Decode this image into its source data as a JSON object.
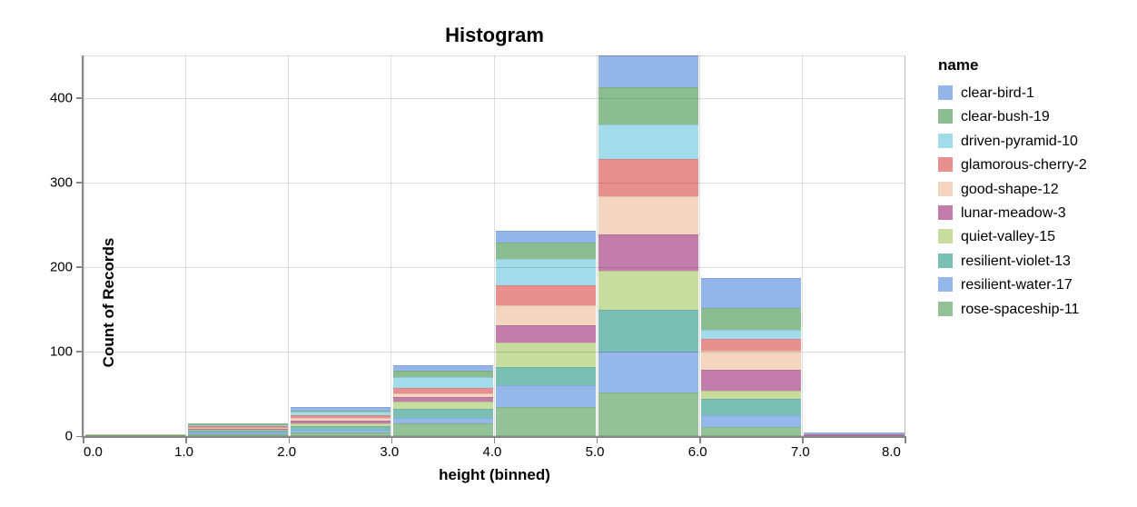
{
  "title": "Histogram",
  "axes": {
    "x_title": "height (binned)",
    "y_title": "Count of Records"
  },
  "legend": {
    "title": "name"
  },
  "colors": {
    "grid": "rgba(0,0,0,0.13)",
    "axis_domain": "#888888",
    "text": "#000000",
    "background": "#ffffff"
  },
  "chart_data": {
    "type": "bar",
    "stacked": true,
    "stack_order": "reversed",
    "title": "Histogram",
    "xlabel": "height (binned)",
    "ylabel": "Count of Records",
    "legend_title": "name",
    "legend_position": "right",
    "grid": true,
    "xlim": [
      0,
      8
    ],
    "ylim": [
      0,
      450
    ],
    "x_tick_values": [
      0,
      1,
      2,
      3,
      4,
      5,
      6,
      7,
      8
    ],
    "x_tick_labels": [
      "0.0",
      "1.0",
      "2.0",
      "3.0",
      "4.0",
      "5.0",
      "6.0",
      "7.0",
      "8.0"
    ],
    "y_tick_values": [
      0,
      100,
      200,
      300,
      400
    ],
    "y_tick_labels": [
      "0",
      "100",
      "200",
      "300",
      "400"
    ],
    "bin_edges": [
      0,
      1,
      2,
      3,
      4,
      5,
      6,
      7,
      8
    ],
    "bin_totals": [
      2,
      15,
      34,
      84,
      243,
      450,
      187,
      4
    ],
    "series": [
      {
        "name": "clear-bird-1",
        "color": "#93b5e9",
        "values": [
          0,
          0,
          4,
          7,
          14,
          38,
          36,
          2
        ]
      },
      {
        "name": "clear-bush-19",
        "color": "#8cbd90",
        "values": [
          0,
          2,
          1,
          7,
          20,
          44,
          25,
          0
        ]
      },
      {
        "name": "driven-pyramid-10",
        "color": "#a2dcea",
        "values": [
          0,
          1,
          4,
          13,
          31,
          40,
          11,
          0
        ]
      },
      {
        "name": "glamorous-cherry-2",
        "color": "#e89090",
        "values": [
          0,
          2,
          3,
          6,
          23,
          44,
          14,
          0
        ]
      },
      {
        "name": "good-shape-12",
        "color": "#f4d5c0",
        "values": [
          0,
          1,
          4,
          5,
          24,
          46,
          23,
          0
        ]
      },
      {
        "name": "lunar-meadow-3",
        "color": "#c27daa",
        "values": [
          0,
          1,
          3,
          5,
          20,
          43,
          24,
          2
        ]
      },
      {
        "name": "quiet-valley-15",
        "color": "#c7dd9d",
        "values": [
          1,
          2,
          3,
          9,
          29,
          46,
          10,
          0
        ]
      },
      {
        "name": "resilient-violet-13",
        "color": "#79bfb4",
        "values": [
          0,
          2,
          4,
          10,
          22,
          49,
          19,
          0
        ]
      },
      {
        "name": "resilient-water-17",
        "color": "#95b8ea",
        "values": [
          0,
          2,
          4,
          7,
          26,
          48,
          14,
          0
        ]
      },
      {
        "name": "rose-spaceship-11",
        "color": "#92c296",
        "values": [
          1,
          2,
          4,
          15,
          34,
          52,
          11,
          0
        ]
      }
    ]
  }
}
